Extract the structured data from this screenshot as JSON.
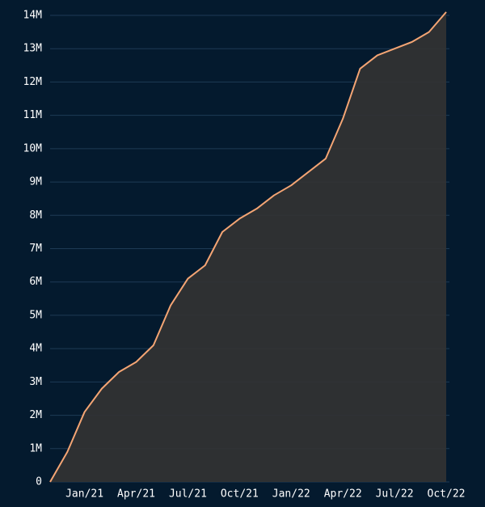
{
  "chart_data": {
    "type": "area",
    "x": [
      "2020-11",
      "2020-12",
      "2021-01",
      "2021-02",
      "2021-03",
      "2021-04",
      "2021-05",
      "2021-06",
      "2021-07",
      "2021-08",
      "2021-09",
      "2021-10",
      "2021-11",
      "2021-12",
      "2022-01",
      "2022-02",
      "2022-03",
      "2022-04",
      "2022-05",
      "2022-06",
      "2022-07",
      "2022-08",
      "2022-09",
      "2022-10"
    ],
    "values": [
      0,
      900000,
      2100000,
      2800000,
      3300000,
      3600000,
      4100000,
      5300000,
      6100000,
      6500000,
      7500000,
      7900000,
      8200000,
      8600000,
      8900000,
      9300000,
      9700000,
      10900000,
      12400000,
      12800000,
      13000000,
      13200000,
      13500000,
      14100000
    ],
    "color": "#f4a574",
    "fill": "#333333",
    "xlim": [
      "2020-11",
      "2022-10"
    ],
    "xticks": [
      {
        "value": "2021-01",
        "label": "Jan/21"
      },
      {
        "value": "2021-04",
        "label": "Apr/21"
      },
      {
        "value": "2021-07",
        "label": "Jul/21"
      },
      {
        "value": "2021-10",
        "label": "Oct/21"
      },
      {
        "value": "2022-01",
        "label": "Jan/22"
      },
      {
        "value": "2022-04",
        "label": "Apr/22"
      },
      {
        "value": "2022-07",
        "label": "Jul/22"
      },
      {
        "value": "2022-10",
        "label": "Oct/22"
      }
    ],
    "ylim": [
      0,
      14000000
    ],
    "yticks": [
      0,
      {
        "value": 1000000,
        "label": "1M"
      },
      {
        "value": 2000000,
        "label": "2M"
      },
      {
        "value": 3000000,
        "label": "3M"
      },
      {
        "value": 4000000,
        "label": "4M"
      },
      {
        "value": 5000000,
        "label": "5M"
      },
      {
        "value": 6000000,
        "label": "6M"
      },
      {
        "value": 7000000,
        "label": "7M"
      },
      {
        "value": 8000000,
        "label": "8M"
      },
      {
        "value": 9000000,
        "label": "9M"
      },
      {
        "value": 10000000,
        "label": "10M"
      },
      {
        "value": 11000000,
        "label": "11M"
      },
      {
        "value": 12000000,
        "label": "12M"
      },
      {
        "value": 13000000,
        "label": "13M"
      },
      {
        "value": 14000000,
        "label": "14M"
      }
    ],
    "grid": true
  }
}
